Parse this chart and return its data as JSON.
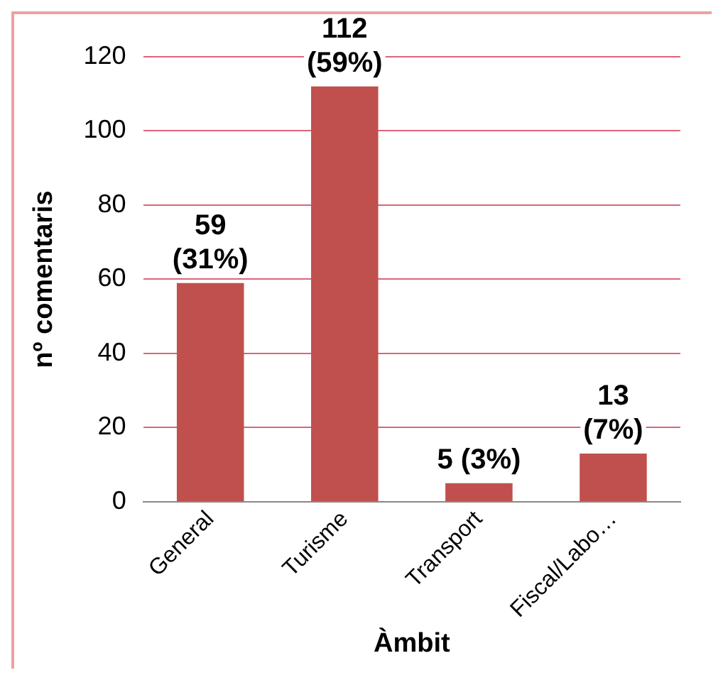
{
  "chart_data": {
    "type": "bar",
    "xlabel": "Àmbit",
    "ylabel": "nº comentaris",
    "categories": [
      "General",
      "Turisme",
      "Transport",
      "Fiscal/Labo…"
    ],
    "values": [
      59,
      112,
      5,
      13
    ],
    "value_labels": [
      "59\n(31%)",
      "112\n(59%)",
      "5 (3%)",
      "13\n(7%)"
    ],
    "color": "#c0504d",
    "ylim": [
      0,
      120
    ],
    "yticks": [
      0,
      20,
      40,
      60,
      80,
      100,
      120
    ],
    "grid": "y",
    "legend": false
  }
}
